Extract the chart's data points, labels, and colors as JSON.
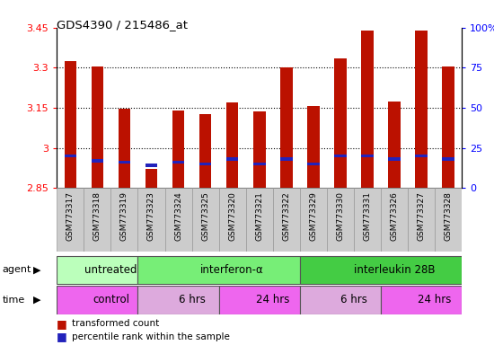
{
  "title": "GDS4390 / 215486_at",
  "samples": [
    "GSM773317",
    "GSM773318",
    "GSM773319",
    "GSM773323",
    "GSM773324",
    "GSM773325",
    "GSM773320",
    "GSM773321",
    "GSM773322",
    "GSM773329",
    "GSM773330",
    "GSM773331",
    "GSM773326",
    "GSM773327",
    "GSM773328"
  ],
  "transformed_counts": [
    3.325,
    3.305,
    3.148,
    2.92,
    3.14,
    3.128,
    3.17,
    3.135,
    3.3,
    3.158,
    3.335,
    3.44,
    3.172,
    3.438,
    3.305
  ],
  "percentile_ranks": [
    20,
    17,
    16,
    14,
    16,
    15,
    18,
    15,
    18,
    15,
    20,
    20,
    18,
    20,
    18
  ],
  "ylim_left": [
    2.85,
    3.45
  ],
  "ylim_right": [
    0,
    100
  ],
  "yticks_left": [
    2.85,
    3.0,
    3.15,
    3.3,
    3.45
  ],
  "yticks_right": [
    0,
    25,
    50,
    75,
    100
  ],
  "ytick_labels_left": [
    "2.85",
    "3",
    "3.15",
    "3.3",
    "3.45"
  ],
  "ytick_labels_right": [
    "0",
    "25",
    "50",
    "75",
    "100%"
  ],
  "baseline": 2.85,
  "bar_color": "#bb1100",
  "percentile_color": "#2222bb",
  "agent_groups": [
    {
      "label": "untreated",
      "start": 0,
      "end": 3,
      "color": "#bbffbb"
    },
    {
      "label": "interferon-α",
      "start": 3,
      "end": 9,
      "color": "#77ee77"
    },
    {
      "label": "interleukin 28B",
      "start": 9,
      "end": 15,
      "color": "#44cc44"
    }
  ],
  "time_groups": [
    {
      "label": "control",
      "start": 0,
      "end": 3,
      "color": "#ee66ee"
    },
    {
      "label": "6 hrs",
      "start": 3,
      "end": 6,
      "color": "#ddaadd"
    },
    {
      "label": "24 hrs",
      "start": 6,
      "end": 9,
      "color": "#ee66ee"
    },
    {
      "label": "6 hrs",
      "start": 9,
      "end": 12,
      "color": "#ddaadd"
    },
    {
      "label": "24 hrs",
      "start": 12,
      "end": 15,
      "color": "#ee66ee"
    }
  ],
  "legend_items": [
    {
      "label": "transformed count",
      "color": "#bb1100"
    },
    {
      "label": "percentile rank within the sample",
      "color": "#2222bb"
    }
  ],
  "bar_width": 0.45,
  "background_color": "#ffffff",
  "plot_bg_color": "#ffffff",
  "xticklabel_bg": "#cccccc",
  "grid_linestyle": "dotted",
  "agent_label_fontsize": 9,
  "time_label_fontsize": 9
}
